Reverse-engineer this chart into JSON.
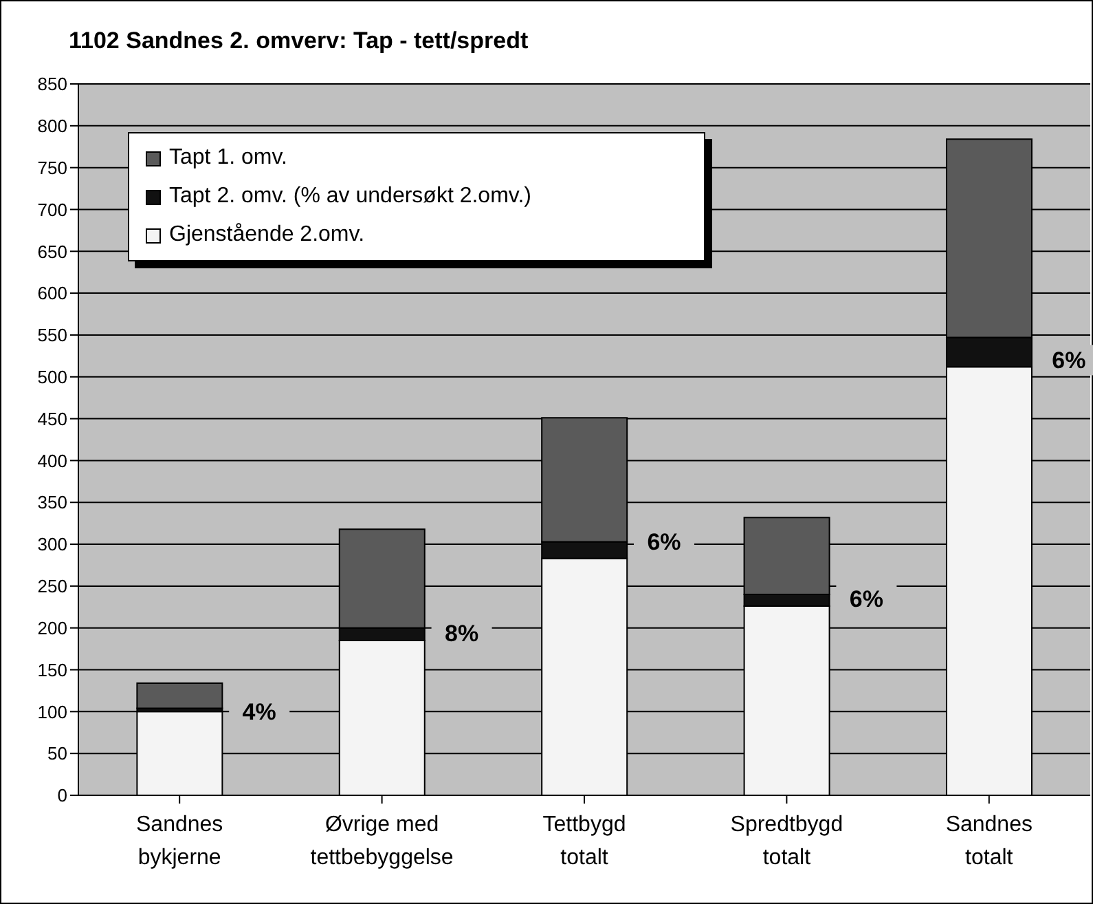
{
  "chart_data": {
    "type": "bar",
    "title": "1102 Sandnes 2. omverv: Tap - tett/spredt",
    "categories": [
      "Sandnes bykjerne",
      "Øvrige med tettbebyggelse",
      "Tettbygd totalt",
      "Spredtbygd totalt",
      "Sandnes totalt"
    ],
    "stacked": true,
    "series": [
      {
        "name": "Gjenstående 2.omv.",
        "color": "#f4f4f4",
        "values": [
          100,
          185,
          283,
          226,
          512
        ]
      },
      {
        "name": "Tapt 2. omv. (% av undersøkt 2.omv.)",
        "color": "#111111",
        "values": [
          4,
          15,
          20,
          14,
          35
        ]
      },
      {
        "name": "Tapt 1. omv.",
        "color": "#5a5a5a",
        "values": [
          30,
          118,
          148,
          92,
          237
        ]
      }
    ],
    "ylim": [
      0,
      850
    ],
    "yticks": [
      0,
      50,
      100,
      150,
      200,
      250,
      300,
      350,
      400,
      450,
      500,
      550,
      600,
      650,
      700,
      750,
      800,
      850
    ],
    "grid": "y",
    "legend": "top left",
    "annotations": [
      {
        "text": "4%",
        "x": "Sandnes bykjerne",
        "y": 100
      },
      {
        "text": "8%",
        "x": "Øvrige med tettbebyggelse",
        "y": 194
      },
      {
        "text": "6%",
        "x": "Tettbygd totalt",
        "y": 303
      },
      {
        "text": "6%",
        "x": "Spredtbygd totalt",
        "y": 235
      },
      {
        "text": "6%",
        "x": "Sandnes totalt",
        "y": 520
      }
    ]
  }
}
